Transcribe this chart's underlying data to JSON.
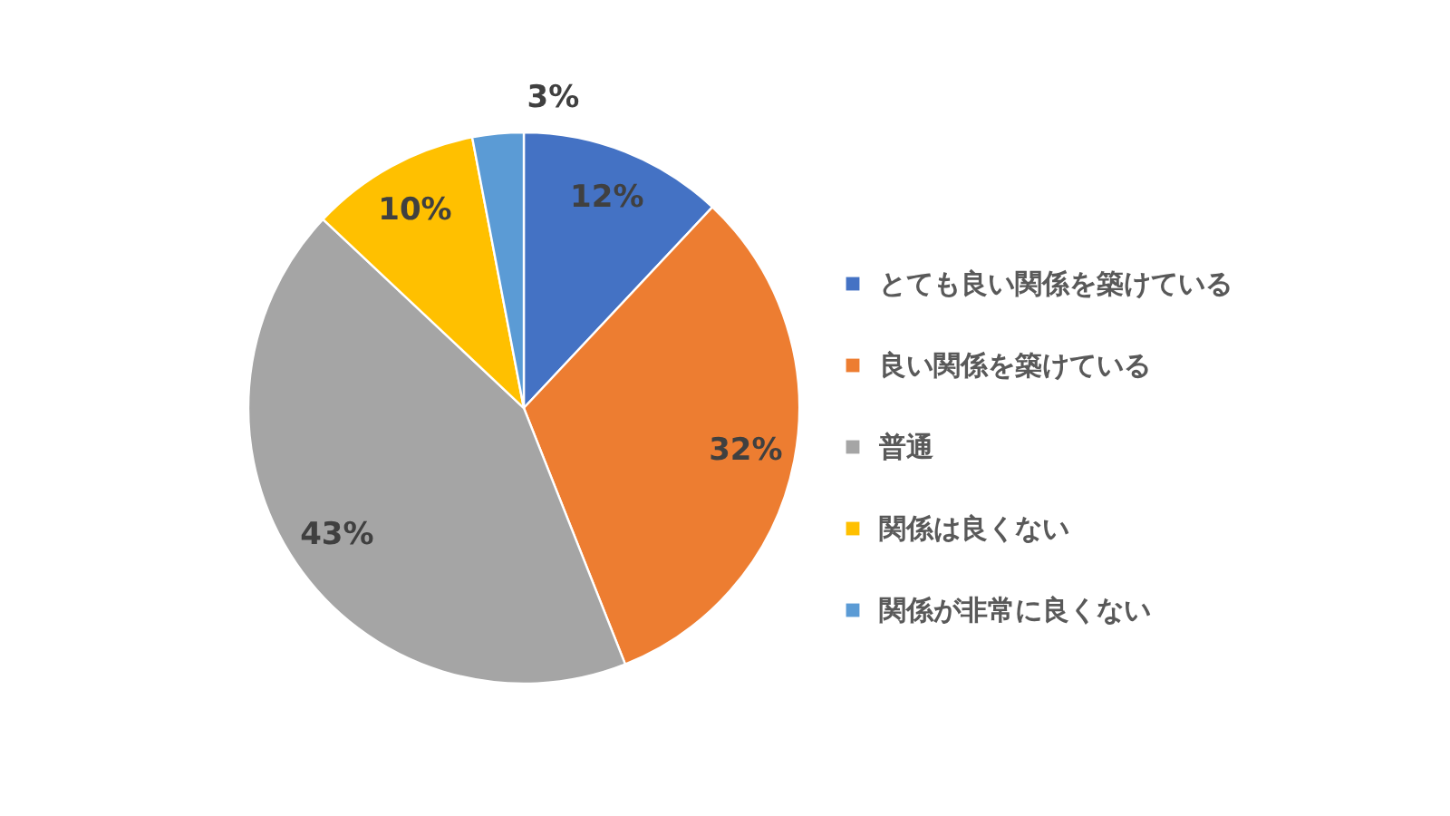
{
  "chart_data": {
    "type": "pie",
    "categories": [
      "とても良い関係を築けている",
      "良い関係を築けている",
      "普通",
      "関係は良くない",
      "関係が非常に良くない"
    ],
    "values": [
      12,
      32,
      43,
      10,
      3
    ],
    "colors": [
      "#4472c4",
      "#ed7d31",
      "#a5a5a5",
      "#ffc000",
      "#5b9bd5"
    ],
    "value_labels": [
      "12%",
      "32%",
      "43%",
      "10%",
      "3%"
    ],
    "legend": "right"
  }
}
